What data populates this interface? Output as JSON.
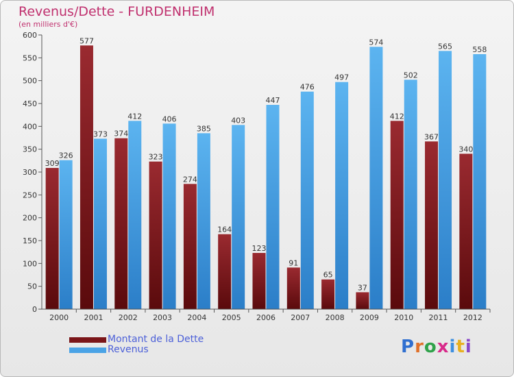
{
  "header": {
    "title": "Revenus/Dette - FURDENHEIM",
    "subtitle": "(en milliers d'€)"
  },
  "legend": {
    "items": [
      {
        "label": "Montant de la Dette",
        "color": "#7a1518"
      },
      {
        "label": "Revenus",
        "color": "#4aa3e6"
      }
    ]
  },
  "logo": {
    "letters": [
      "P",
      "r",
      "o",
      "x",
      "i",
      "t",
      "i"
    ],
    "colors": [
      "#2f6fd0",
      "#e0712a",
      "#2fa24a",
      "#d82a8a",
      "#3e8fe0",
      "#e8b020",
      "#8a48c8"
    ]
  },
  "chart_data": {
    "type": "bar",
    "title": "Revenus/Dette - FURDENHEIM",
    "subtitle": "(en milliers d'€)",
    "categories": [
      "2000",
      "2001",
      "2002",
      "2003",
      "2004",
      "2005",
      "2006",
      "2007",
      "2008",
      "2009",
      "2010",
      "2011",
      "2012"
    ],
    "series": [
      {
        "name": "Montant de la Dette",
        "values": [
          309,
          577,
          374,
          323,
          274,
          164,
          123,
          91,
          65,
          37,
          412,
          367,
          340
        ],
        "color": "#7a1518"
      },
      {
        "name": "Revenus",
        "values": [
          326,
          373,
          412,
          406,
          385,
          403,
          447,
          476,
          497,
          574,
          502,
          565,
          558
        ],
        "color": "#4aa3e6"
      }
    ],
    "ylim": [
      0,
      600
    ],
    "yticks": [
      0,
      50,
      100,
      150,
      200,
      250,
      300,
      350,
      400,
      450,
      500,
      550,
      600
    ],
    "grid": false,
    "legend_position": "bottom-left"
  }
}
